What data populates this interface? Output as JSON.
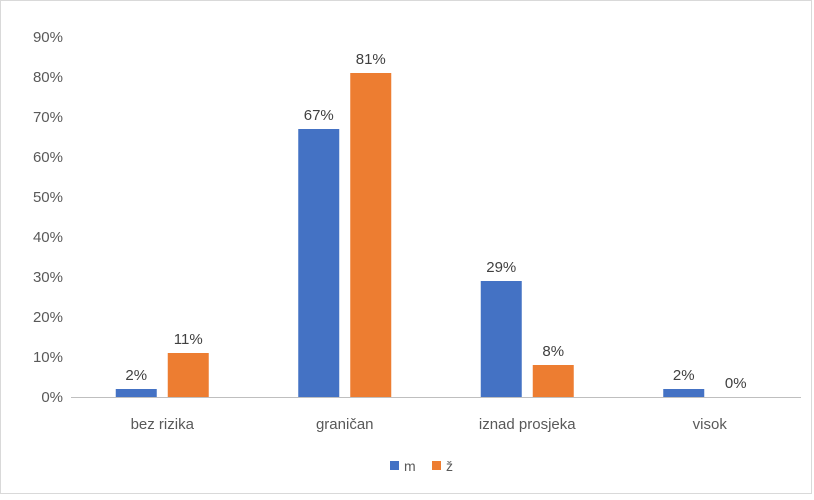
{
  "chart_data": {
    "type": "bar",
    "title": "",
    "xlabel": "",
    "ylabel": "",
    "categories": [
      "bez rizika",
      "graničan",
      "iznad prosjeka",
      "visok"
    ],
    "series": [
      {
        "name": "m",
        "values": [
          2,
          67,
          29,
          2
        ],
        "labels": [
          "2%",
          "67%",
          "29%",
          "2%"
        ],
        "color": "#4472C4"
      },
      {
        "name": "ž",
        "values": [
          11,
          81,
          8,
          0
        ],
        "labels": [
          "11%",
          "81%",
          "8%",
          "0%"
        ],
        "color": "#ED7D31"
      }
    ],
    "yticks": [
      "0%",
      "10%",
      "20%",
      "30%",
      "40%",
      "50%",
      "60%",
      "70%",
      "80%",
      "90%"
    ],
    "ylim": [
      0,
      90
    ],
    "grid": false,
    "legend_position": "bottom"
  }
}
